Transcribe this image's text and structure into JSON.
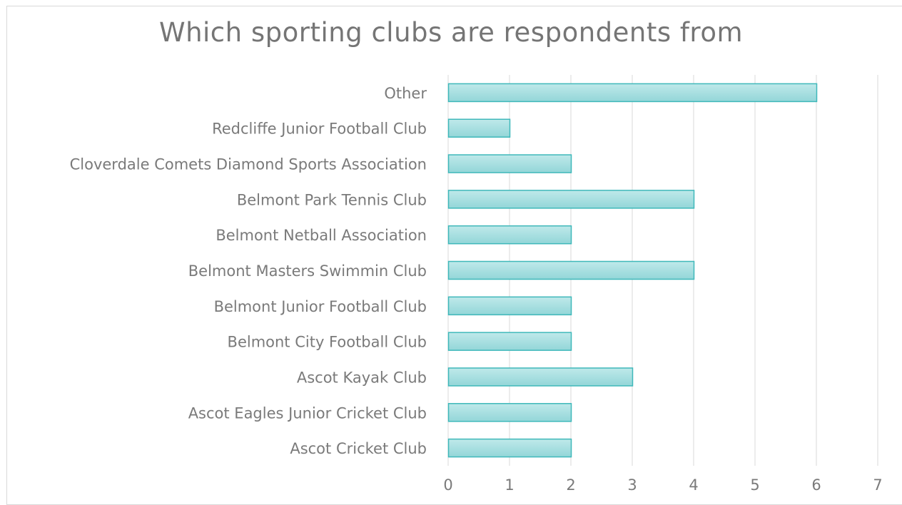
{
  "chart_data": {
    "type": "bar",
    "orientation": "horizontal",
    "title": "Which sporting clubs are respondents from",
    "xlabel": "",
    "ylabel": "",
    "categories": [
      "Ascot Cricket Club",
      "Ascot Eagles Junior Cricket Club",
      "Ascot Kayak Club",
      "Belmont City Football Club",
      "Belmont Junior Football Club",
      "Belmont Masters Swimmin Club",
      "Belmont Netball Association",
      "Belmont Park Tennis Club",
      "Cloverdale Comets Diamond Sports Association",
      "Redcliffe Junior Football Club",
      "Other"
    ],
    "values": [
      2,
      2,
      3,
      2,
      2,
      4,
      2,
      4,
      2,
      1,
      6
    ],
    "xlim": [
      0,
      7
    ],
    "xticks": [
      "0",
      "1",
      "2",
      "3",
      "4",
      "5",
      "6",
      "7"
    ],
    "grid": true,
    "legend": "none",
    "colors": {
      "bar_fill_top": "#bfe9ea",
      "bar_fill_bottom": "#93d6d8",
      "bar_stroke": "#3fb8ba",
      "grid": "#d9d9d9",
      "text": "#7a7a7a"
    }
  }
}
